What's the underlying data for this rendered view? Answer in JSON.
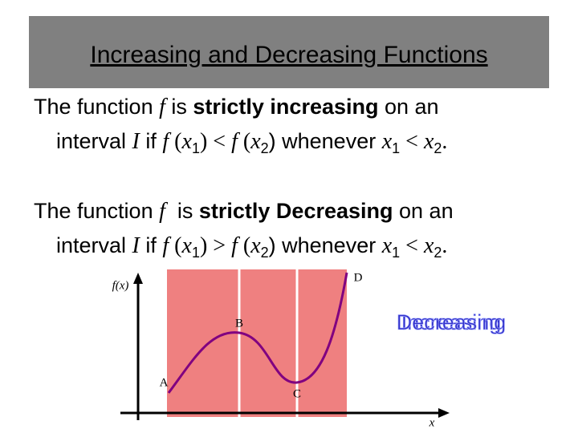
{
  "title": "Increasing and Decreasing Functions",
  "definitions": [
    {
      "lines": [
        [
          "The function ",
          "f",
          " is ",
          "strictly increasing",
          " on an"
        ],
        [
          "interval ",
          "I",
          " if ",
          "f",
          " (",
          "x",
          "1",
          ") < ",
          "f",
          " (",
          "x",
          "2",
          ") whenever ",
          "x",
          "1",
          " < ",
          "x",
          "2",
          "."
        ]
      ]
    },
    {
      "lines": [
        [
          "The function ",
          "f",
          "  is ",
          "strictly Decreasing",
          " on an"
        ],
        [
          "interval ",
          "I",
          " if ",
          "f",
          " (",
          "x",
          "1",
          ") > ",
          "f",
          " (",
          "x",
          "2",
          ") whenever ",
          "x",
          "1",
          " < ",
          "x",
          "2",
          "."
        ]
      ]
    }
  ],
  "graph": {
    "y_axis_label": "f(x)",
    "x_axis_label": "x",
    "points": [
      "A",
      "B",
      "C",
      "D"
    ],
    "overlay_labels": [
      "Increasing",
      "Decreasing"
    ]
  }
}
